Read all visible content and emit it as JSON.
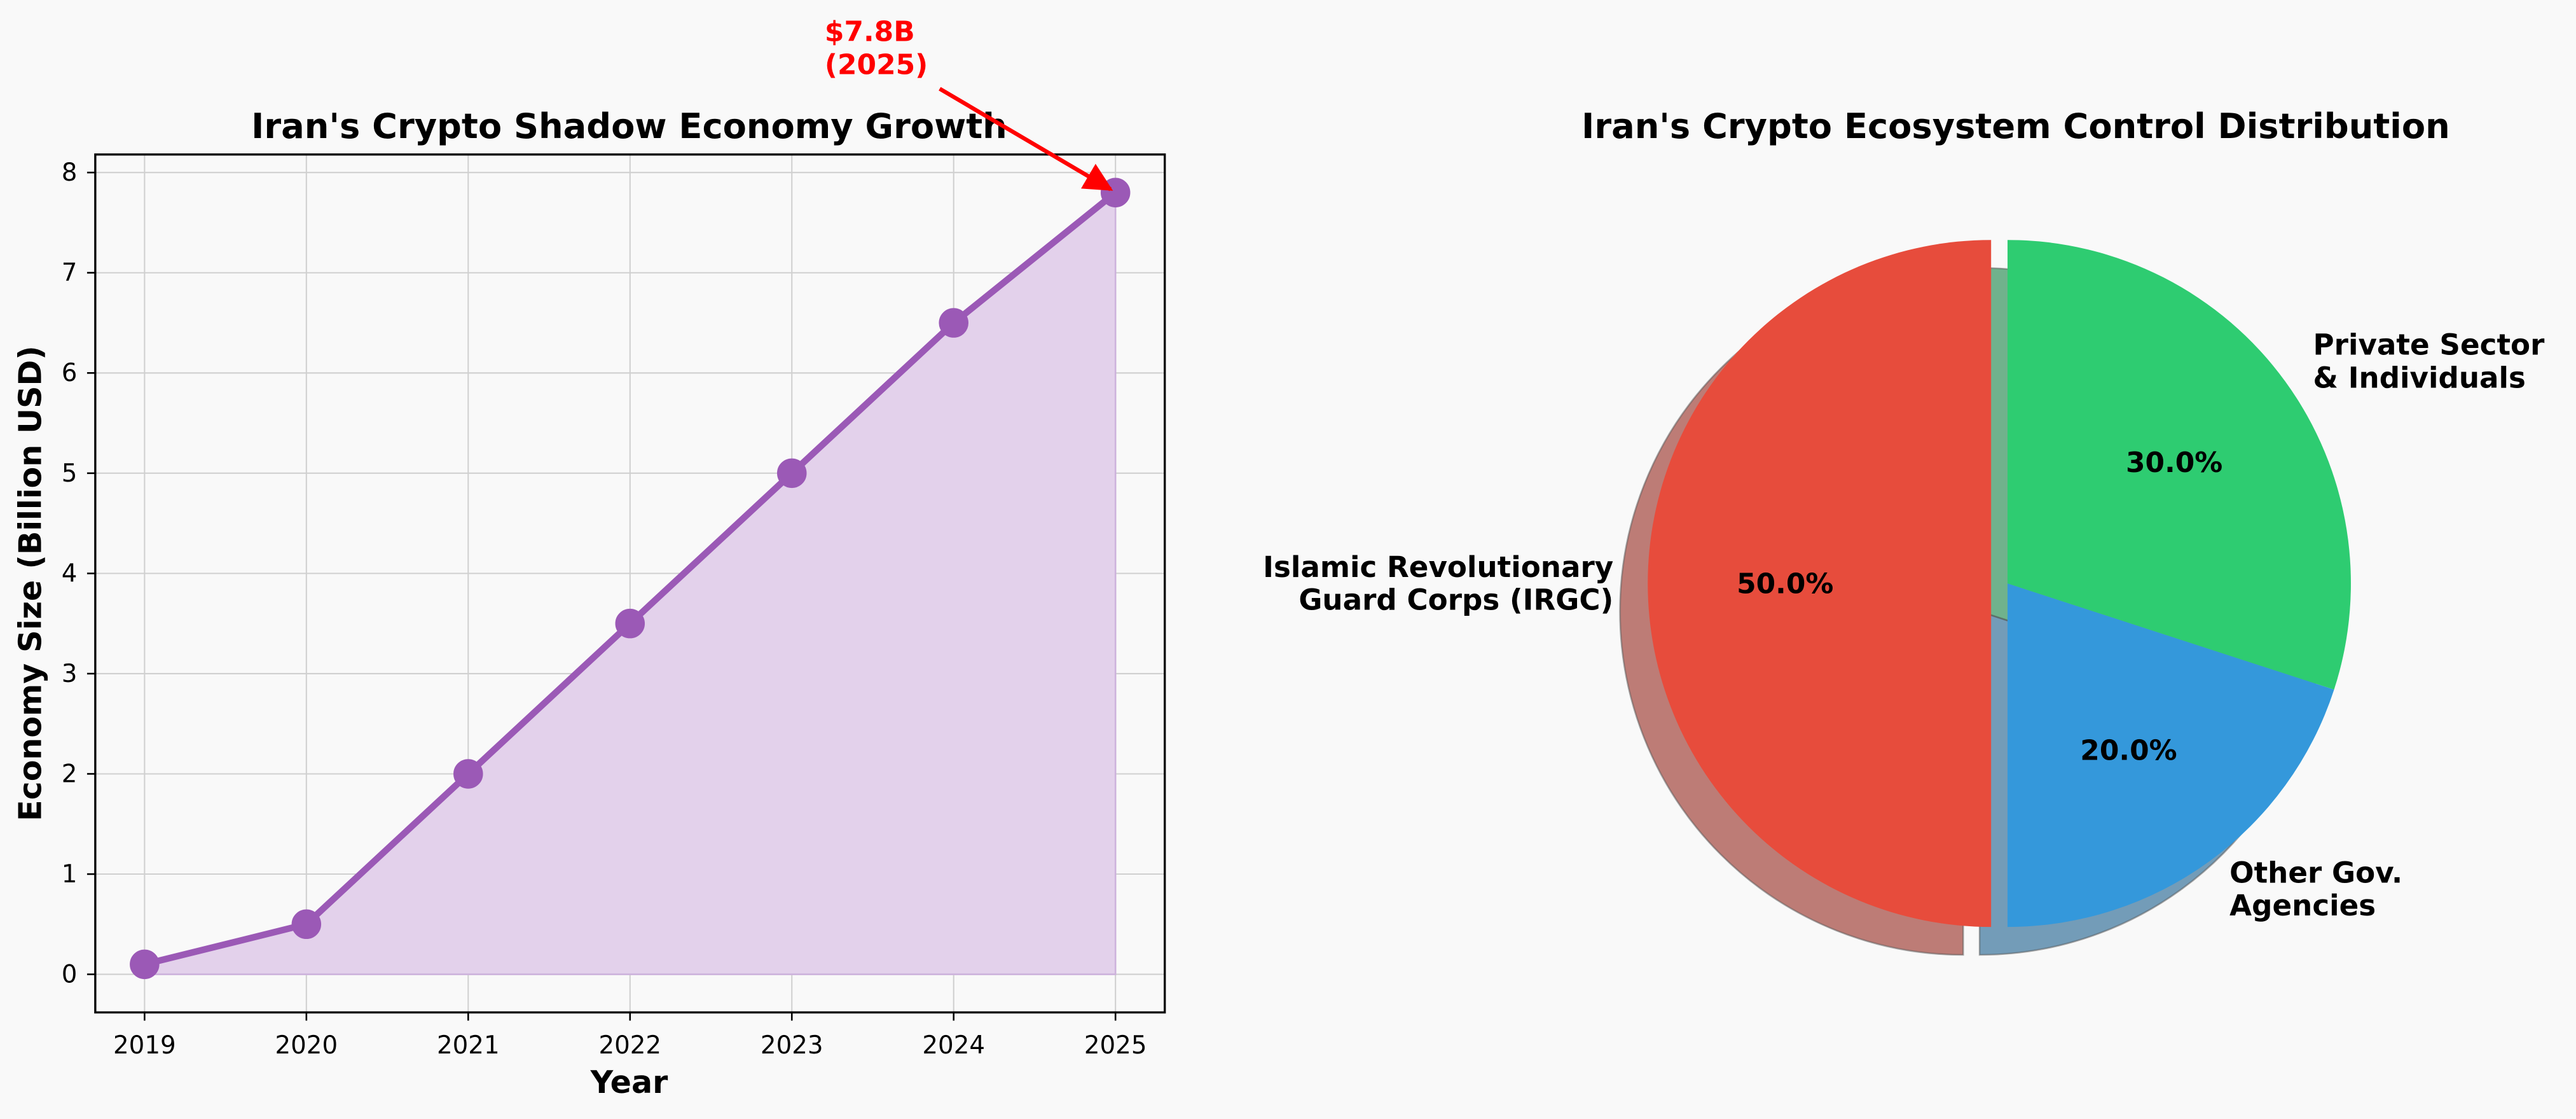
{
  "charts": [
    {
      "type": "area",
      "title": "Iran's Crypto Shadow Economy Growth",
      "xlabel": "Year",
      "ylabel": "Economy Size (Billion USD)",
      "x": [
        "2019",
        "2020",
        "2021",
        "2022",
        "2023",
        "2024",
        "2025"
      ],
      "y": [
        0.1,
        0.5,
        2.0,
        3.5,
        5.0,
        6.5,
        7.8
      ],
      "yticks": [
        "0",
        "1",
        "2",
        "3",
        "4",
        "5",
        "6",
        "7",
        "8"
      ],
      "ylim": [
        -0.38,
        8.18
      ],
      "grid": true,
      "line_color": "#9b59b6",
      "fill_color": "#e3d1eb",
      "annotation": {
        "line1": "$7.8B",
        "line2": "(2025)",
        "target_year": "2025",
        "target_value": 7.8,
        "color": "#ff0000"
      }
    },
    {
      "type": "pie",
      "title": "Iran's Crypto Ecosystem Control Distribution",
      "slices": [
        {
          "label_line1": "Islamic Revolutionary",
          "label_line2": "Guard Corps (IRGC)",
          "value": 50.0,
          "pct_label": "50.0%",
          "color": "#e74c3c",
          "exploded": true
        },
        {
          "label_line1": "Other Gov.",
          "label_line2": "Agencies",
          "value": 20.0,
          "pct_label": "20.0%",
          "color": "#3498db",
          "exploded": false
        },
        {
          "label_line1": "Private Sector",
          "label_line2": "& Individuals",
          "value": 30.0,
          "pct_label": "30.0%",
          "color": "#2ecc71",
          "exploded": false
        }
      ],
      "shadow": true,
      "start_angle": 90
    }
  ]
}
